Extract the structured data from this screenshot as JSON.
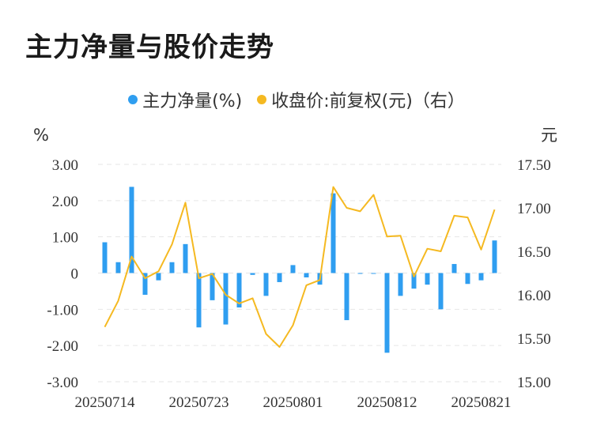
{
  "title": "主力净量与股价走势",
  "chart_data": {
    "type": "bar",
    "legend": [
      {
        "label": "主力净量(%)",
        "color": "#2f9ef0"
      },
      {
        "label": "收盘价:前复权(元)（右）",
        "color": "#f5b921"
      }
    ],
    "ylabel_left": "%",
    "ylabel_right": "元",
    "yticks_left": [
      "3.00",
      "2.00",
      "1.00",
      "0",
      "-1.00",
      "-2.00",
      "-3.00"
    ],
    "yticks_right": [
      "17.50",
      "17.00",
      "16.50",
      "16.00",
      "15.50",
      "15.00"
    ],
    "ylim_left": [
      -3,
      3
    ],
    "ylim_right": [
      15,
      17.5
    ],
    "grid": true,
    "legend_position": "top-center",
    "xtick_labels": [
      {
        "index": 0,
        "label": "20250714"
      },
      {
        "index": 7,
        "label": "20250723"
      },
      {
        "index": 14,
        "label": "20250801"
      },
      {
        "index": 21,
        "label": "20250812"
      },
      {
        "index": 28,
        "label": "20250821"
      }
    ],
    "series": [
      {
        "name": "主力净量(%)",
        "type": "bar",
        "values": [
          0.85,
          0.3,
          2.38,
          -0.6,
          -0.2,
          0.3,
          0.8,
          -1.5,
          -0.75,
          -1.42,
          -0.95,
          -0.05,
          -0.63,
          -0.25,
          0.22,
          -0.12,
          -0.32,
          2.2,
          -1.3,
          -0.02,
          -0.02,
          -2.2,
          -0.63,
          -0.43,
          -0.32,
          -1.0,
          0.25,
          -0.3,
          -0.2,
          0.9
        ]
      },
      {
        "name": "收盘价:前复权(元)（右）",
        "type": "line",
        "values": [
          15.63,
          15.93,
          16.44,
          16.19,
          16.27,
          16.58,
          17.06,
          16.19,
          16.24,
          16.0,
          15.9,
          15.96,
          15.55,
          15.4,
          15.65,
          16.11,
          16.17,
          17.24,
          17.0,
          16.96,
          17.15,
          16.67,
          16.68,
          16.21,
          16.53,
          16.5,
          16.91,
          16.89,
          16.52,
          16.98
        ]
      }
    ]
  }
}
